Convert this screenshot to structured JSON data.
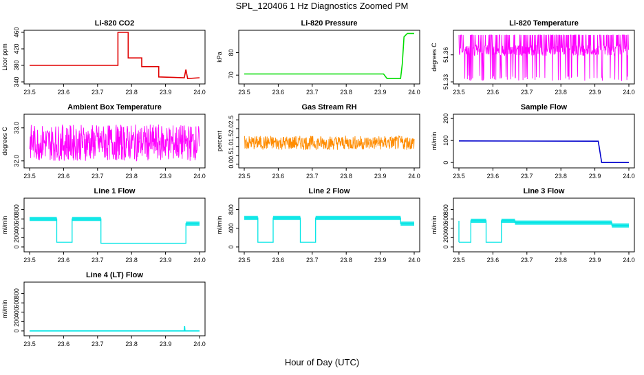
{
  "title": "SPL_120406  1 Hz Diagnostics Zoomed PM",
  "xlabel": "Hour of Day (UTC)",
  "x_ticks": [
    "23.5",
    "23.6",
    "23.7",
    "23.8",
    "23.9",
    "24.0"
  ],
  "chart_data": [
    {
      "id": "co2",
      "type": "line",
      "title": "Li-820 CO2",
      "ylabel": "Licor ppm",
      "color": "#e00000",
      "xlim": [
        23.5,
        24.0
      ],
      "ylim": [
        340,
        460
      ],
      "y_ticks": [
        "340",
        "380",
        "420",
        "460"
      ],
      "series": [
        {
          "x": [
            23.5,
            23.76,
            23.76,
            23.79,
            23.79,
            23.83,
            23.83,
            23.88,
            23.88,
            23.955,
            23.96,
            23.965,
            24.0
          ],
          "y": [
            380,
            380,
            460,
            460,
            398,
            398,
            377,
            377,
            352,
            350,
            370,
            348,
            350
          ]
        }
      ]
    },
    {
      "id": "pressure",
      "type": "line",
      "title": "Li-820 Pressure",
      "ylabel": "kPa",
      "color": "#00dd00",
      "xlim": [
        23.5,
        24.0
      ],
      "ylim": [
        67,
        89
      ],
      "y_ticks": [
        "70",
        "80"
      ],
      "series": [
        {
          "x": [
            23.5,
            23.91,
            23.92,
            23.96,
            23.965,
            23.97,
            23.98,
            24.0
          ],
          "y": [
            70.5,
            70.5,
            68.5,
            68.5,
            75,
            87,
            88.5,
            88.5
          ]
        }
      ]
    },
    {
      "id": "licor_temp",
      "type": "line",
      "title": "Li-820 Temperature",
      "ylabel": "degrees C",
      "color": "#ff00ff",
      "xlim": [
        23.5,
        24.0
      ],
      "ylim": [
        51.33,
        51.385
      ],
      "y_ticks": [
        "51.33",
        "51.36"
      ],
      "noise": {
        "base": 51.365,
        "amp": 0.006,
        "spike_low": 51.331,
        "spike_high": 51.382
      }
    },
    {
      "id": "box_temp",
      "type": "line",
      "title": "Ambient Box Temperature",
      "ylabel": "degrees C",
      "color": "#ff00ff",
      "xlim": [
        23.5,
        24.0
      ],
      "ylim": [
        31.85,
        33.35
      ],
      "y_ticks": [
        "32.0",
        "33.0"
      ],
      "noise": {
        "base": 32.55,
        "amp": 0.55
      }
    },
    {
      "id": "rh",
      "type": "line",
      "title": "Gas Stream RH",
      "ylabel": "percent",
      "color": "#ff8c00",
      "xlim": [
        23.5,
        24.0
      ],
      "ylim": [
        -0.1,
        2.7
      ],
      "y_ticks": [
        "0.0",
        "0.5",
        "1.0",
        "1.5",
        "2.0",
        "2.5"
      ],
      "noise": {
        "base": 1.2,
        "amp": 0.4
      }
    },
    {
      "id": "sample_flow",
      "type": "line",
      "title": "Sample Flow",
      "ylabel": "ml/min",
      "color": "#0000cc",
      "xlim": [
        23.5,
        24.0
      ],
      "ylim": [
        -15,
        210
      ],
      "y_ticks": [
        "0",
        "100",
        "200"
      ],
      "series": [
        {
          "x": [
            23.5,
            23.91,
            23.92,
            24.0
          ],
          "y": [
            98,
            97,
            0,
            0
          ]
        }
      ]
    },
    {
      "id": "line1",
      "type": "line",
      "title": "Line 1 Flow",
      "ylabel": "ml/min",
      "color": "#00e5e5",
      "xlim": [
        23.5,
        24.0
      ],
      "ylim": [
        -60,
        1000
      ],
      "y_ticks": [
        "0",
        "200",
        "400",
        "600",
        "800"
      ],
      "segments": [
        {
          "x0": 23.5,
          "x1": 23.58,
          "y": 600
        },
        {
          "x0": 23.58,
          "x1": 23.625,
          "y": 100
        },
        {
          "x0": 23.625,
          "x1": 23.71,
          "y": 600
        },
        {
          "x0": 23.71,
          "x1": 23.96,
          "y": 80
        },
        {
          "x0": 23.96,
          "x1": 24.0,
          "y": 500
        }
      ]
    },
    {
      "id": "line2",
      "type": "line",
      "title": "Line 2 Flow",
      "ylabel": "ml/min",
      "color": "#00e5e5",
      "xlim": [
        23.5,
        24.0
      ],
      "ylim": [
        -60,
        1000
      ],
      "y_ticks": [
        "0",
        "400",
        "800"
      ],
      "segments": [
        {
          "x0": 23.5,
          "x1": 23.54,
          "y": 620
        },
        {
          "x0": 23.54,
          "x1": 23.585,
          "y": 100
        },
        {
          "x0": 23.585,
          "x1": 23.665,
          "y": 620
        },
        {
          "x0": 23.665,
          "x1": 23.71,
          "y": 100
        },
        {
          "x0": 23.71,
          "x1": 23.96,
          "y": 620
        },
        {
          "x0": 23.96,
          "x1": 24.0,
          "y": 500
        }
      ]
    },
    {
      "id": "line3",
      "type": "line",
      "title": "Line 3 Flow",
      "ylabel": "ml/min",
      "color": "#00e5e5",
      "xlim": [
        23.5,
        24.0
      ],
      "ylim": [
        -60,
        1000
      ],
      "y_ticks": [
        "0",
        "200",
        "400",
        "600",
        "800"
      ],
      "segments": [
        {
          "x0": 23.5,
          "x1": 23.535,
          "y": 100
        },
        {
          "x0": 23.535,
          "x1": 23.58,
          "y": 560
        },
        {
          "x0": 23.58,
          "x1": 23.625,
          "y": 100
        },
        {
          "x0": 23.625,
          "x1": 23.665,
          "y": 560
        },
        {
          "x0": 23.665,
          "x1": 23.95,
          "y": 520
        },
        {
          "x0": 23.95,
          "x1": 24.0,
          "y": 460
        }
      ],
      "spikes": [
        {
          "x": 23.5,
          "y": 560
        }
      ]
    },
    {
      "id": "line4",
      "type": "line",
      "title": "Line 4 (LT) Flow",
      "ylabel": "ml/min",
      "color": "#00e5e5",
      "xlim": [
        23.5,
        24.0
      ],
      "ylim": [
        -60,
        1000
      ],
      "y_ticks": [
        "0",
        "200",
        "400",
        "600",
        "800"
      ],
      "series": [
        {
          "x": [
            23.5,
            23.955,
            23.956,
            23.957,
            23.958,
            24.0
          ],
          "y": [
            0,
            0,
            100,
            0,
            0,
            0
          ]
        }
      ]
    }
  ]
}
